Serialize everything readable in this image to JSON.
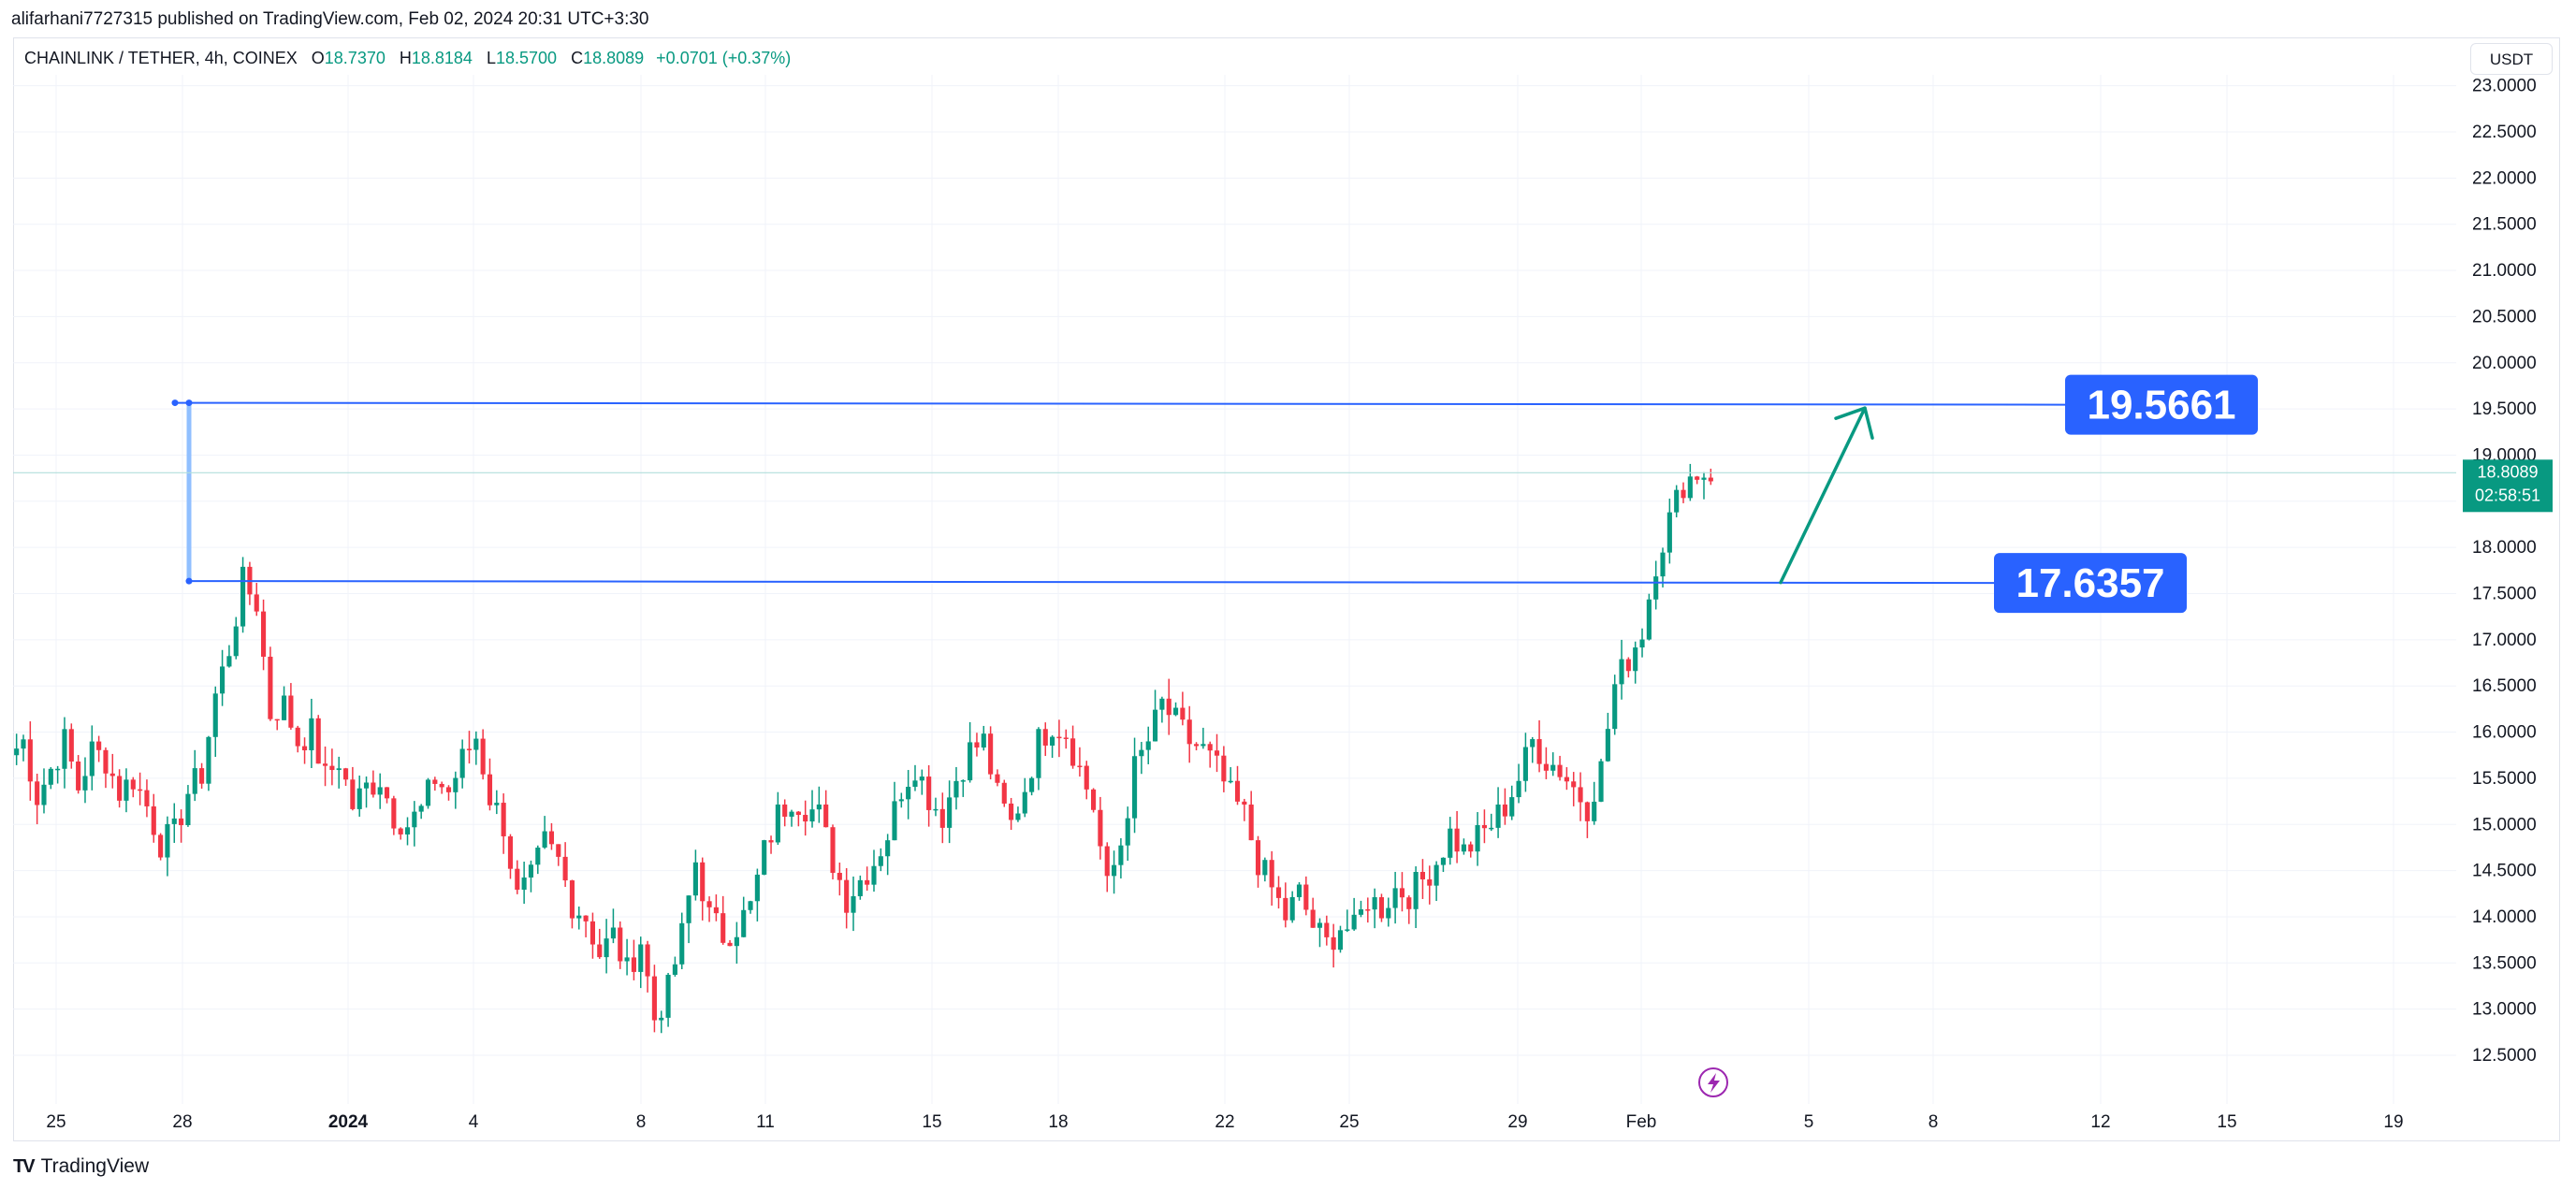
{
  "header": {
    "publisher": "alifarhani7727315 published on TradingView.com, Feb 02, 2024 20:31 UTC+3:30"
  },
  "legend": {
    "symbol": "CHAINLINK / TETHER, 4h, COINEX",
    "open_label": "O",
    "open": "18.7370",
    "high_label": "H",
    "high": "18.8184",
    "low_label": "L",
    "low": "18.5700",
    "close_label": "C",
    "close": "18.8089",
    "change": "+0.0701 (+0.37%)"
  },
  "currency": "USDT",
  "footer": {
    "brand": "TradingView",
    "logo": "TV"
  },
  "colors": {
    "up": "#089981",
    "down": "#f23645",
    "line": "#2962ff",
    "axis_text": "#131722",
    "callout_bg": "#2962ff",
    "arrow": "#089981"
  },
  "chart_data": {
    "type": "candlestick",
    "title": "CHAINLINK / TETHER, 4h, COINEX",
    "ylim": [
      12.1,
      23.2
    ],
    "y_ticks": [
      "12.5000",
      "13.0000",
      "13.5000",
      "14.0000",
      "14.5000",
      "15.0000",
      "15.5000",
      "16.0000",
      "16.5000",
      "17.0000",
      "17.5000",
      "18.0000",
      "18.5000",
      "19.0000",
      "19.5000",
      "20.0000",
      "20.5000",
      "21.0000",
      "21.5000",
      "22.0000",
      "22.5000",
      "23.0000"
    ],
    "x_ticks": [
      "25",
      "28",
      "2024",
      "4",
      "8",
      "11",
      "15",
      "18",
      "22",
      "25",
      "29",
      "Feb",
      "5",
      "8",
      "12",
      "15",
      "19"
    ],
    "last_price": "18.8089",
    "countdown": "02:58:51",
    "levels": [
      {
        "label": "19.5661",
        "value": 19.5661
      },
      {
        "label": "17.6357",
        "value": 17.6357
      }
    ],
    "arrow": {
      "from": 17.62,
      "to": 19.55,
      "direction": "up"
    },
    "series": [
      {
        "name": "CHAINLINK / TETHER",
        "segments": [
          {
            "start": 15.75,
            "path": [
              [
                15.9,
                15.3
              ],
              [
                15.6,
                15.9
              ],
              [
                15.4,
                15.8
              ],
              [
                15.7,
                15.35
              ],
              [
                15.5,
                15.2
              ],
              [
                14.8,
                14.9
              ],
              [
                15.35,
                15.55
              ],
              [
                16.4,
                16.9
              ],
              [
                17.62,
                17.4
              ],
              [
                16.2,
                16.3
              ],
              [
                15.9,
                16.0
              ],
              [
                15.5,
                15.7
              ],
              [
                15.2,
                15.4
              ],
              [
                15.5,
                15.1
              ],
              [
                15.0,
                15.15
              ]
            ],
            "count": 42
          },
          {
            "start": 15.15,
            "path": [
              [
                15.5,
                15.35
              ],
              [
                15.7,
                15.95
              ],
              [
                15.3,
                15.0
              ],
              [
                14.2,
                14.4
              ],
              [
                14.8,
                14.6
              ],
              [
                14.15,
                14.0
              ],
              [
                13.6,
                13.8
              ],
              [
                13.4,
                13.75
              ],
              [
                12.9,
                13.2
              ],
              [
                13.8,
                14.6
              ],
              [
                14.0,
                13.8
              ],
              [
                13.9,
                14.1
              ],
              [
                14.7,
                15.1
              ],
              [
                15.3,
                15.2
              ],
              [
                15.1,
                14.6
              ],
              [
                14.2,
                14.4
              ],
              [
                14.6,
                14.9
              ],
              [
                15.4,
                15.65
              ],
              [
                15.3,
                15.1
              ],
              [
                15.5,
                15.8
              ],
              [
                15.9,
                15.3
              ],
              [
                15.0,
                15.4
              ],
              [
                15.9,
                16.1
              ],
              [
                16.0,
                15.6
              ],
              [
                15.2,
                14.3
              ],
              [
                14.8,
                15.6
              ],
              [
                15.9,
                16.3
              ],
              [
                16.1,
                15.9
              ],
              [
                15.8,
                15.6
              ],
              [
                15.3,
                15.1
              ],
              [
                14.6,
                14.3
              ],
              [
                14.0,
                14.25
              ],
              [
                13.9,
                13.7
              ],
              [
                13.9,
                13.85
              ],
              [
                14.2,
                14.1
              ],
              [
                14.3,
                14.25
              ],
              [
                14.4,
                14.6
              ],
              [
                14.9,
                14.7
              ],
              [
                14.85,
                15.0
              ],
              [
                15.2,
                15.5
              ],
              [
                15.9,
                15.7
              ],
              [
                15.6,
                15.4
              ],
              [
                15.2,
                15.6
              ],
              [
                16.5,
                16.8
              ],
              [
                17.1,
                17.85
              ],
              [
                18.3,
                18.7
              ],
              [
                18.81,
                18.81
              ]
            ],
            "count": 180
          }
        ]
      }
    ]
  }
}
